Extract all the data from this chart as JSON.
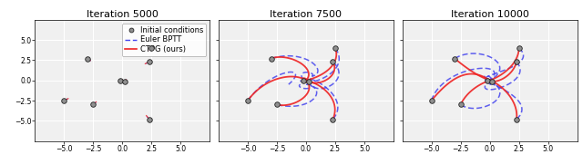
{
  "titles": [
    "Iteration 5000",
    "Iteration 7500",
    "Iteration 10000"
  ],
  "xlim": [
    -7.5,
    7.5
  ],
  "ylim": [
    -7.5,
    7.5
  ],
  "xticks": [
    -5,
    -2.5,
    0,
    2.5,
    5
  ],
  "yticks": [
    -5,
    -2.5,
    0,
    2.5,
    5
  ],
  "initial_conditions": [
    [
      -5.0,
      -2.5
    ],
    [
      -3.0,
      2.7
    ],
    [
      -2.5,
      -3.0
    ],
    [
      -0.2,
      0.0
    ],
    [
      0.2,
      -0.1
    ],
    [
      2.3,
      2.3
    ],
    [
      2.5,
      4.0
    ],
    [
      2.3,
      -4.8
    ]
  ],
  "euler_color": "#4444ee",
  "ctpg_color": "#ee2222",
  "title_fontsize": 8,
  "tick_fontsize": 5.5,
  "legend_fontsize": 6
}
